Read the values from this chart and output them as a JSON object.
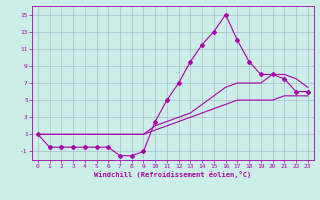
{
  "background_color": "#cceee8",
  "grid_color": "#aabbcc",
  "line_color": "#aa00aa",
  "xlim": [
    -0.5,
    23.5
  ],
  "ylim": [
    -2,
    16
  ],
  "xticks": [
    0,
    1,
    2,
    3,
    4,
    5,
    6,
    7,
    8,
    9,
    10,
    11,
    12,
    13,
    14,
    15,
    16,
    17,
    18,
    19,
    20,
    21,
    22,
    23
  ],
  "yticks": [
    -1,
    1,
    3,
    5,
    7,
    9,
    11,
    13,
    15
  ],
  "xlabel": "Windchill (Refroidissement éolien,°C)",
  "series1_x": [
    0,
    1,
    2,
    3,
    4,
    5,
    6,
    7,
    8,
    9,
    10,
    11,
    12,
    13,
    14,
    15,
    16,
    17,
    18,
    19,
    20,
    21,
    22,
    23
  ],
  "series1_y": [
    1,
    -0.5,
    -0.5,
    -0.5,
    -0.5,
    -0.5,
    -0.5,
    -1.5,
    -1.5,
    -1,
    2.5,
    5,
    7,
    9.5,
    11.5,
    13,
    15,
    12,
    9.5,
    8,
    8,
    7.5,
    6,
    6
  ],
  "series2_x": [
    0,
    1,
    2,
    3,
    4,
    5,
    6,
    7,
    8,
    9,
    10,
    11,
    12,
    13,
    14,
    15,
    16,
    17,
    18,
    19,
    20,
    21,
    22,
    23
  ],
  "series2_y": [
    1,
    1,
    1,
    1,
    1,
    1,
    1,
    1,
    1,
    1,
    2,
    2.5,
    3,
    3.5,
    4.5,
    5.5,
    6.5,
    7,
    7,
    7,
    8,
    8,
    7.5,
    6.5
  ],
  "series3_x": [
    0,
    1,
    2,
    3,
    4,
    5,
    6,
    7,
    8,
    9,
    10,
    11,
    12,
    13,
    14,
    15,
    16,
    17,
    18,
    19,
    20,
    21,
    22,
    23
  ],
  "series3_y": [
    1,
    1,
    1,
    1,
    1,
    1,
    1,
    1,
    1,
    1,
    1.5,
    2,
    2.5,
    3,
    3.5,
    4,
    4.5,
    5,
    5,
    5,
    5,
    5.5,
    5.5,
    5.5
  ]
}
